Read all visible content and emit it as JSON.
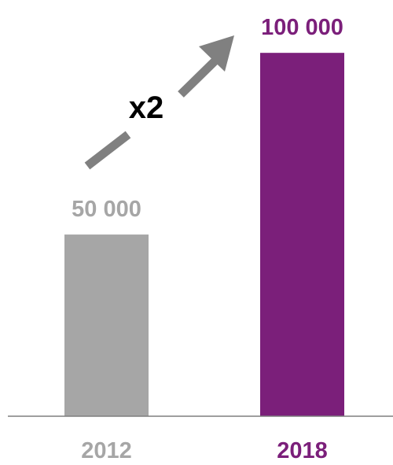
{
  "chart_data": {
    "type": "bar",
    "categories": [
      "2012",
      "2018"
    ],
    "values": [
      50000,
      100000
    ],
    "value_labels": [
      "50 000",
      "100 000"
    ],
    "colors": [
      "#a6a6a6",
      "#7b1f7a"
    ],
    "label_colors": [
      "#a6a6a6",
      "#7b1f7a"
    ],
    "category_label_colors": [
      "#a6a6a6",
      "#7b1f7a"
    ],
    "annotation": {
      "text": "x2",
      "color": "#000000",
      "arrow_color": "#808080"
    },
    "axis_color": "#7f7f7f",
    "ylim": [
      0,
      110000
    ],
    "grid": false,
    "title": "",
    "xlabel": "",
    "ylabel": ""
  }
}
